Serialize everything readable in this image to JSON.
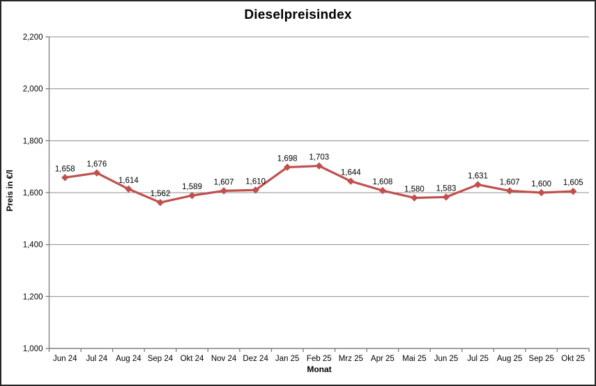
{
  "chart_data": {
    "type": "line",
    "title": "Dieselpreisindex",
    "xlabel": "Monat",
    "ylabel": "Preis in €/l",
    "categories": [
      "Jun 24",
      "Jul 24",
      "Aug 24",
      "Sep 24",
      "Okt 24",
      "Nov 24",
      "Dez 24",
      "Jan 25",
      "Feb 25",
      "Mrz 25",
      "Apr 25",
      "Mai 25",
      "Jun 25",
      "Jul 25",
      "Aug 25",
      "Sep 25",
      "Okt 25"
    ],
    "values": [
      1.658,
      1.676,
      1.614,
      1.562,
      1.589,
      1.607,
      1.61,
      1.698,
      1.703,
      1.644,
      1.608,
      1.58,
      1.583,
      1.631,
      1.607,
      1.6,
      1.605
    ],
    "point_labels": [
      "1,658",
      "1,676",
      "1,614",
      "1,562",
      "1,589",
      "1,607",
      "1,610",
      "1,698",
      "1,703",
      "1,644",
      "1,608",
      "1,580",
      "1,583",
      "1,631",
      "1,607",
      "1,600",
      "1,605"
    ],
    "ylim": [
      1.0,
      2.2
    ],
    "ytick_labels": [
      "1,000",
      "1,200",
      "1,400",
      "1,600",
      "1,800",
      "2,000",
      "2,200"
    ],
    "grid": true,
    "legend": "none",
    "marker": "diamond",
    "colors": {
      "line": "#C0504D",
      "marker": "#C0504D",
      "grid": "#8c8c8c",
      "axis": "#808080",
      "text": "#000000",
      "frame_border": "#262626"
    }
  }
}
